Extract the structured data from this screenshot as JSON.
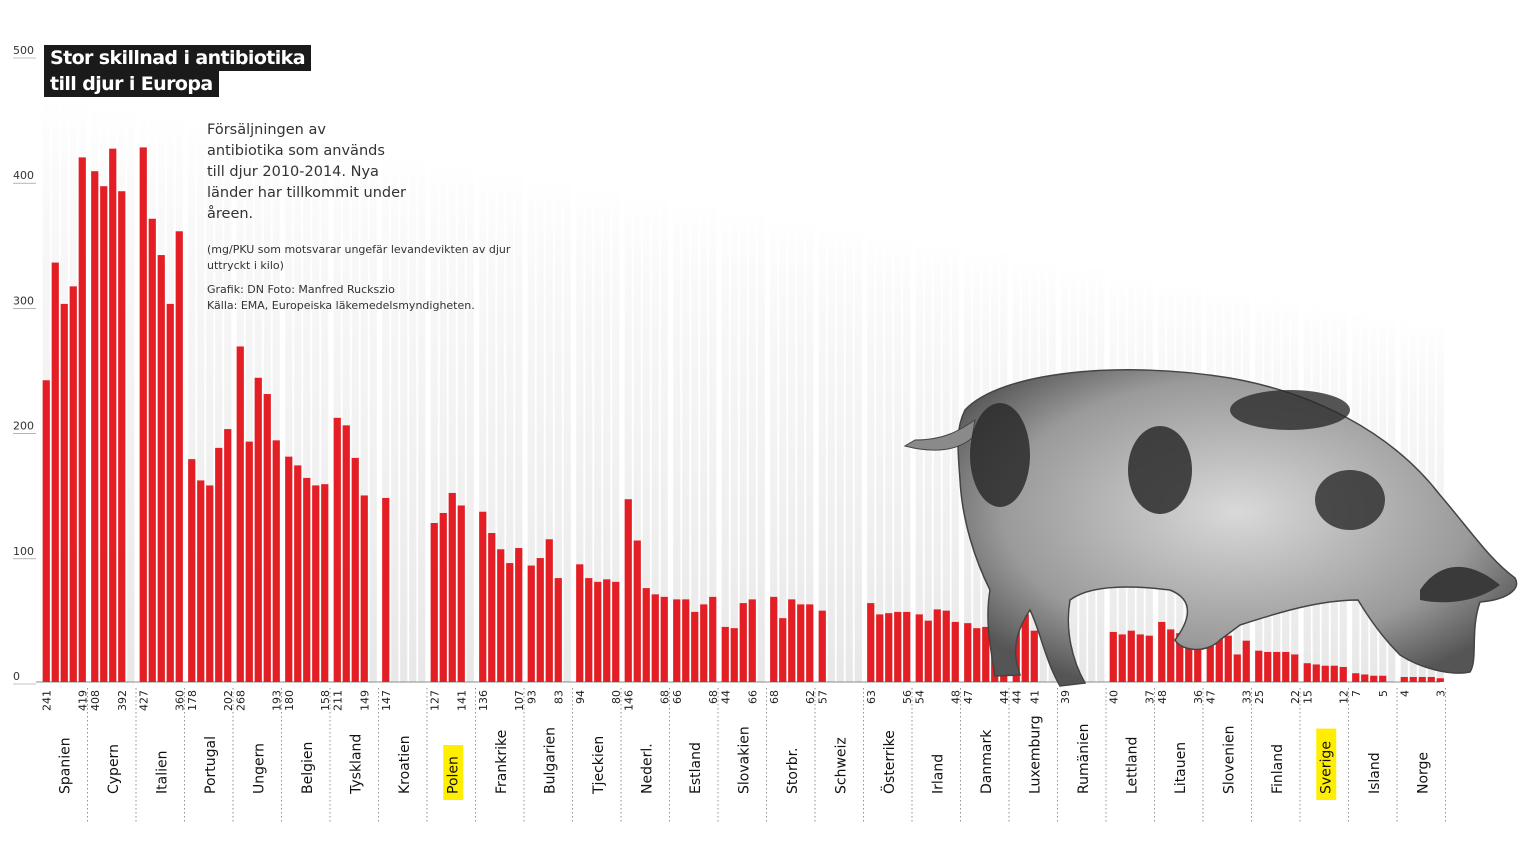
{
  "header": {
    "title_line1": "Stor skillnad i antibiotika",
    "title_line2": "till djur i Europa",
    "subtitle": "Försäljningen av antibiotika som används till djur 2010-2014. Nya länder har tillkommit under åreen.",
    "note": "(mg/PKU som motsvarar ungefär levandevikten av djur uttryckt i kilo)",
    "credit": "Grafik: DN   Foto: Manfred Ruckszio",
    "source": "Källa: EMA, Europeiska läkemedelsmyndigheten."
  },
  "colors": {
    "bar": "#e31e24",
    "highlight": "#ffee00",
    "column_stripe": "#d9d9d9",
    "title_bg": "#1a1a1a"
  },
  "icons": {
    "pig": "pig-photo"
  },
  "chart_data": {
    "type": "bar",
    "title": "Stor skillnad i antibiotika till djur i Europa",
    "ylabel": "",
    "xlabel": "",
    "ylim": [
      0,
      500
    ],
    "yticks": [
      0,
      100,
      200,
      300,
      400,
      500
    ],
    "years": [
      "2010",
      "2011",
      "2012",
      "2013",
      "2014"
    ],
    "highlighted": [
      "Polen",
      "Sverige"
    ],
    "countries": [
      {
        "name": "Spanien",
        "values": [
          241,
          335,
          302,
          316,
          419
        ],
        "labels": {
          "0": "241",
          "4": "419"
        }
      },
      {
        "name": "Cypern",
        "values": [
          408,
          396,
          426,
          392
        ],
        "labels": {
          "0": "408",
          "3": "392"
        }
      },
      {
        "name": "Italien",
        "values": [
          427,
          370,
          341,
          302,
          360
        ],
        "labels": {
          "0": "427",
          "4": "360"
        }
      },
      {
        "name": "Portugal",
        "values": [
          178,
          161,
          157,
          187,
          202
        ],
        "labels": {
          "0": "178",
          "4": "202"
        }
      },
      {
        "name": "Ungern",
        "values": [
          268,
          192,
          243,
          230,
          193
        ],
        "labels": {
          "0": "268",
          "4": "193"
        }
      },
      {
        "name": "Belgien",
        "values": [
          180,
          173,
          163,
          157,
          158
        ],
        "labels": {
          "0": "180",
          "4": "158"
        }
      },
      {
        "name": "Tyskland",
        "values": [
          211,
          205,
          179,
          149
        ],
        "labels": {
          "0": "211",
          "3": "149"
        }
      },
      {
        "name": "Kroatien",
        "values": [
          147
        ],
        "labels": {
          "0": "147"
        }
      },
      {
        "name": "Polen",
        "values": [
          127,
          135,
          151,
          141
        ],
        "labels": {
          "0": "127",
          "3": "141"
        }
      },
      {
        "name": "Frankrike",
        "values": [
          136,
          119,
          106,
          95,
          107
        ],
        "labels": {
          "0": "136",
          "4": "107"
        }
      },
      {
        "name": "Bulgarien",
        "values": [
          93,
          99,
          114,
          83
        ],
        "labels": {
          "0": "93",
          "3": "83"
        }
      },
      {
        "name": "Tjeckien",
        "values": [
          94,
          83,
          80,
          82,
          80
        ],
        "labels": {
          "0": "94",
          "4": "80"
        }
      },
      {
        "name": "Nederl.",
        "values": [
          146,
          113,
          75,
          70,
          68
        ],
        "labels": {
          "0": "146",
          "4": "68"
        }
      },
      {
        "name": "Estland",
        "values": [
          66,
          66,
          56,
          62,
          68
        ],
        "labels": {
          "0": "66",
          "4": "68"
        }
      },
      {
        "name": "Slovakien",
        "values": [
          44,
          43,
          63,
          66
        ],
        "labels": {
          "0": "44",
          "3": "66"
        }
      },
      {
        "name": "Storbr.",
        "values": [
          68,
          51,
          66,
          62,
          62
        ],
        "labels": {
          "0": "68",
          "4": "62"
        }
      },
      {
        "name": "Schweiz",
        "values": [
          57
        ],
        "labels": {
          "0": "57"
        }
      },
      {
        "name": "Österrike",
        "values": [
          63,
          54,
          55,
          56,
          56
        ],
        "labels": {
          "0": "63",
          "4": "56"
        }
      },
      {
        "name": "Irland",
        "values": [
          54,
          49,
          58,
          57,
          48
        ],
        "labels": {
          "0": "54",
          "4": "48"
        }
      },
      {
        "name": "Danmark",
        "values": [
          47,
          43,
          44,
          45,
          44
        ],
        "labels": {
          "0": "47",
          "4": "44"
        }
      },
      {
        "name": "Luxemburg",
        "values": [
          44,
          54,
          41
        ],
        "labels": {
          "0": "44",
          "2": "41"
        }
      },
      {
        "name": "Rumänien",
        "values": [
          39
        ],
        "labels": {
          "0": "39"
        }
      },
      {
        "name": "Lettland",
        "values": [
          40,
          38,
          41,
          38,
          37
        ],
        "labels": {
          "0": "40",
          "4": "37"
        }
      },
      {
        "name": "Litauen",
        "values": [
          48,
          42,
          39,
          29,
          36
        ],
        "labels": {
          "0": "48",
          "4": "36"
        }
      },
      {
        "name": "Slovenien",
        "values": [
          47,
          45,
          37,
          22,
          33
        ],
        "labels": {
          "0": "47",
          "4": "33"
        }
      },
      {
        "name": "Finland",
        "values": [
          25,
          24,
          24,
          24,
          22
        ],
        "labels": {
          "0": "25",
          "4": "22"
        }
      },
      {
        "name": "Sverige",
        "values": [
          15,
          14,
          13,
          13,
          12
        ],
        "labels": {
          "0": "15",
          "4": "12"
        }
      },
      {
        "name": "Island",
        "values": [
          7,
          6,
          5,
          5
        ],
        "labels": {
          "0": "7",
          "3": "5"
        }
      },
      {
        "name": "Norge",
        "values": [
          4,
          4,
          4,
          4,
          3
        ],
        "labels": {
          "0": "4",
          "4": "3"
        }
      }
    ]
  }
}
